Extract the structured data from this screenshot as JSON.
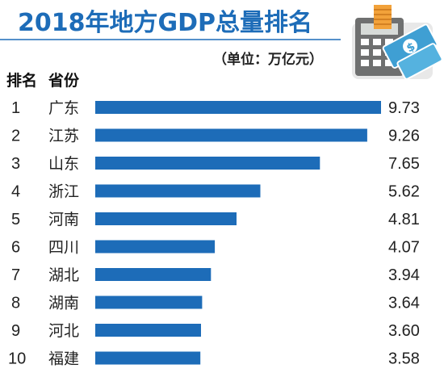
{
  "chart_data": {
    "type": "bar",
    "orientation": "horizontal",
    "title": "2018年地方GDP总量排名",
    "unit": "（单位：万亿元）",
    "column_headers": {
      "rank": "排名",
      "province": "省份"
    },
    "ranks": [
      "1",
      "2",
      "3",
      "4",
      "5",
      "6",
      "7",
      "8",
      "9",
      "10"
    ],
    "categories": [
      "广东",
      "江苏",
      "山东",
      "浙江",
      "河南",
      "四川",
      "湖北",
      "湖南",
      "河北",
      "福建"
    ],
    "values": [
      9.73,
      9.26,
      7.65,
      5.62,
      4.81,
      4.07,
      3.94,
      3.64,
      3.6,
      3.58
    ],
    "value_labels": [
      "9.73",
      "9.26",
      "7.65",
      "5.62",
      "4.81",
      "4.07",
      "3.94",
      "3.64",
      "3.60",
      "3.58"
    ],
    "xlim": [
      0,
      9.73
    ],
    "grid": false,
    "legend": "none",
    "colors": {
      "bar": "#1d6cb8",
      "title": "#1d6cb8"
    }
  },
  "decoration": {
    "icon": "calculator-money-icon"
  }
}
